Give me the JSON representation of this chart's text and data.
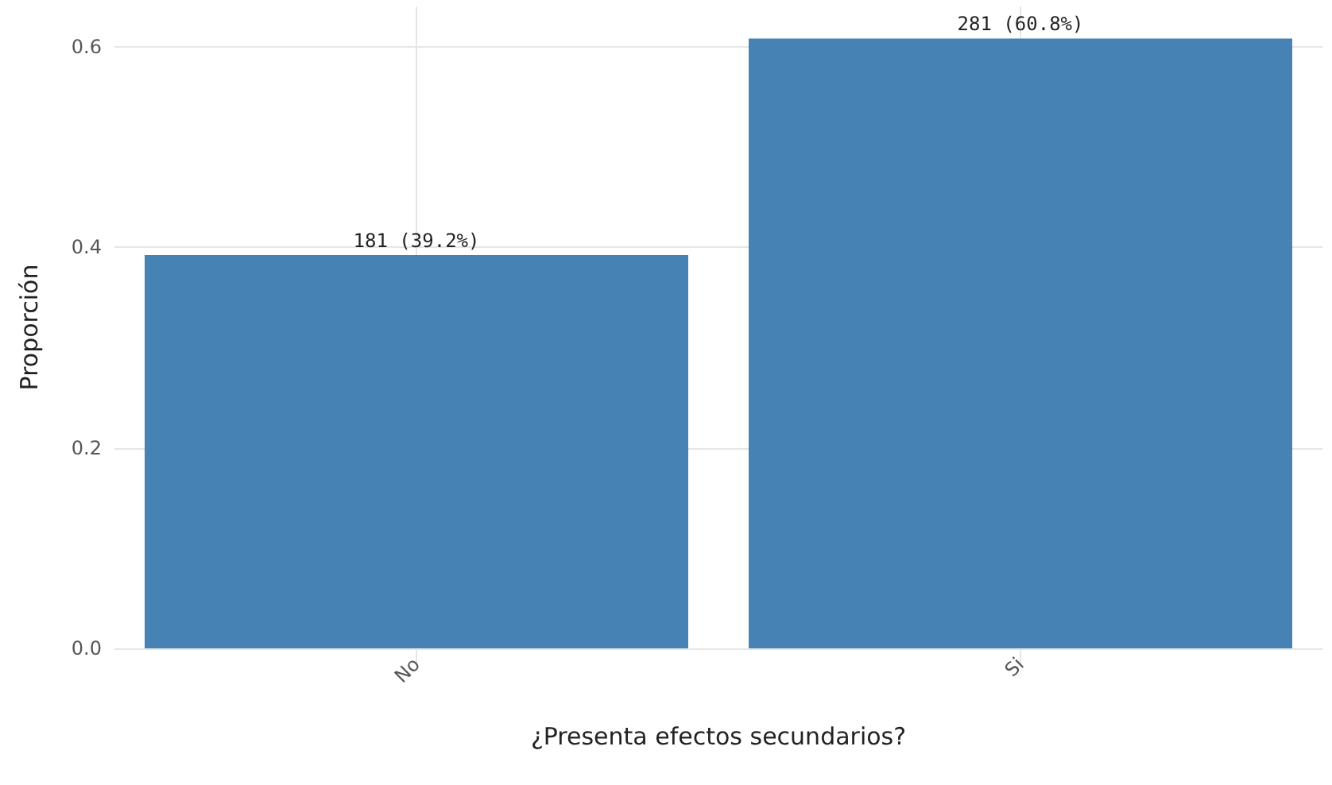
{
  "chart_data": {
    "type": "bar",
    "xlabel": "¿Presenta efectos secundarios?",
    "ylabel": "Proporción",
    "categories": [
      "No",
      "Si"
    ],
    "values": [
      0.392,
      0.608
    ],
    "value_labels": [
      "181 (39.2%)",
      "281 (60.8%)"
    ],
    "color": "#4682b4",
    "ylim": [
      0,
      0.64
    ],
    "yticks": [
      {
        "value": 0,
        "label": "0.0"
      },
      {
        "value": 0.2,
        "label": "0.2"
      },
      {
        "value": 0.4,
        "label": "0.4"
      },
      {
        "value": 0.6,
        "label": "0.6"
      }
    ],
    "grid": true
  }
}
